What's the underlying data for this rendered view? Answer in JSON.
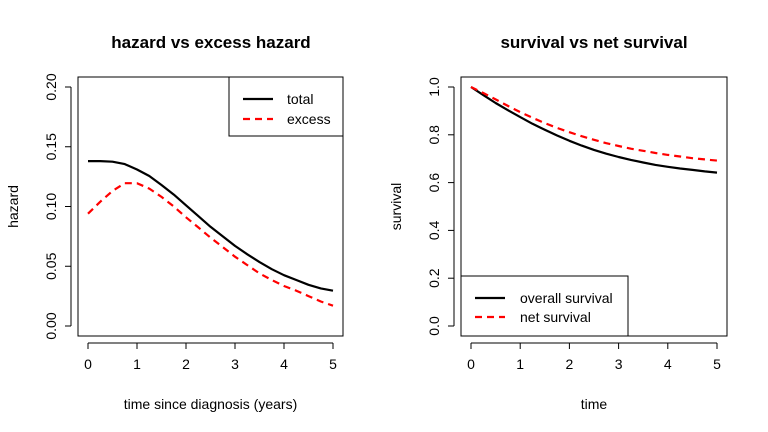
{
  "chart_data": [
    {
      "type": "line",
      "title": "hazard vs excess hazard",
      "xlabel": "time since diagnosis (years)",
      "ylabel": "hazard",
      "xlim": [
        0,
        5
      ],
      "ylim": [
        0,
        0.2
      ],
      "xticks": [
        0,
        1,
        2,
        3,
        4,
        5
      ],
      "yticks": [
        0,
        0.05,
        0.1,
        0.15,
        0.2
      ],
      "ytick_labels": [
        "0.00",
        "0.05",
        "0.10",
        "0.15",
        "0.20"
      ],
      "x": [
        0,
        0.25,
        0.5,
        0.75,
        1,
        1.25,
        1.5,
        1.75,
        2,
        2.25,
        2.5,
        2.75,
        3,
        3.25,
        3.5,
        3.75,
        4,
        4.25,
        4.5,
        4.75,
        5
      ],
      "series": [
        {
          "name": "total",
          "color": "#000000",
          "dash": "solid",
          "values": [
            0.138,
            0.138,
            0.1375,
            0.1355,
            0.131,
            0.1255,
            0.118,
            0.11,
            0.101,
            0.092,
            0.083,
            0.075,
            0.067,
            0.06,
            0.0535,
            0.0475,
            0.0425,
            0.0385,
            0.0345,
            0.0315,
            0.0295
          ]
        },
        {
          "name": "excess",
          "color": "#ff0000",
          "dash": "dashed",
          "values": [
            0.094,
            0.104,
            0.113,
            0.1195,
            0.1195,
            0.115,
            0.108,
            0.1,
            0.091,
            0.0825,
            0.074,
            0.066,
            0.058,
            0.051,
            0.044,
            0.0385,
            0.0335,
            0.0295,
            0.025,
            0.0205,
            0.017
          ]
        }
      ],
      "legend": {
        "position": "top-right",
        "entries": [
          "total",
          "excess"
        ]
      },
      "grid": false
    },
    {
      "type": "line",
      "title": "survival vs net survival",
      "xlabel": "time",
      "ylabel": "survival",
      "xlim": [
        0,
        5
      ],
      "ylim": [
        0,
        1
      ],
      "xticks": [
        0,
        1,
        2,
        3,
        4,
        5
      ],
      "yticks": [
        0,
        0.2,
        0.4,
        0.6,
        0.8,
        1
      ],
      "ytick_labels": [
        "0.0",
        "0.2",
        "0.4",
        "0.6",
        "0.8",
        "1.0"
      ],
      "x": [
        0,
        0.25,
        0.5,
        0.75,
        1,
        1.25,
        1.5,
        1.75,
        2,
        2.25,
        2.5,
        2.75,
        3,
        3.25,
        3.5,
        3.75,
        4,
        4.25,
        4.5,
        4.75,
        5
      ],
      "series": [
        {
          "name": "overall survival",
          "color": "#000000",
          "dash": "solid",
          "values": [
            1.0,
            0.966,
            0.933,
            0.903,
            0.874,
            0.846,
            0.821,
            0.797,
            0.775,
            0.755,
            0.737,
            0.721,
            0.707,
            0.695,
            0.684,
            0.674,
            0.666,
            0.659,
            0.653,
            0.647,
            0.642
          ]
        },
        {
          "name": "net survival",
          "color": "#ff0000",
          "dash": "dashed",
          "values": [
            1.0,
            0.975,
            0.948,
            0.921,
            0.895,
            0.871,
            0.849,
            0.829,
            0.811,
            0.794,
            0.779,
            0.765,
            0.753,
            0.742,
            0.733,
            0.724,
            0.716,
            0.709,
            0.702,
            0.697,
            0.692
          ]
        }
      ],
      "legend": {
        "position": "bottom-left",
        "entries": [
          "overall survival",
          "net survival"
        ]
      },
      "grid": false
    }
  ]
}
